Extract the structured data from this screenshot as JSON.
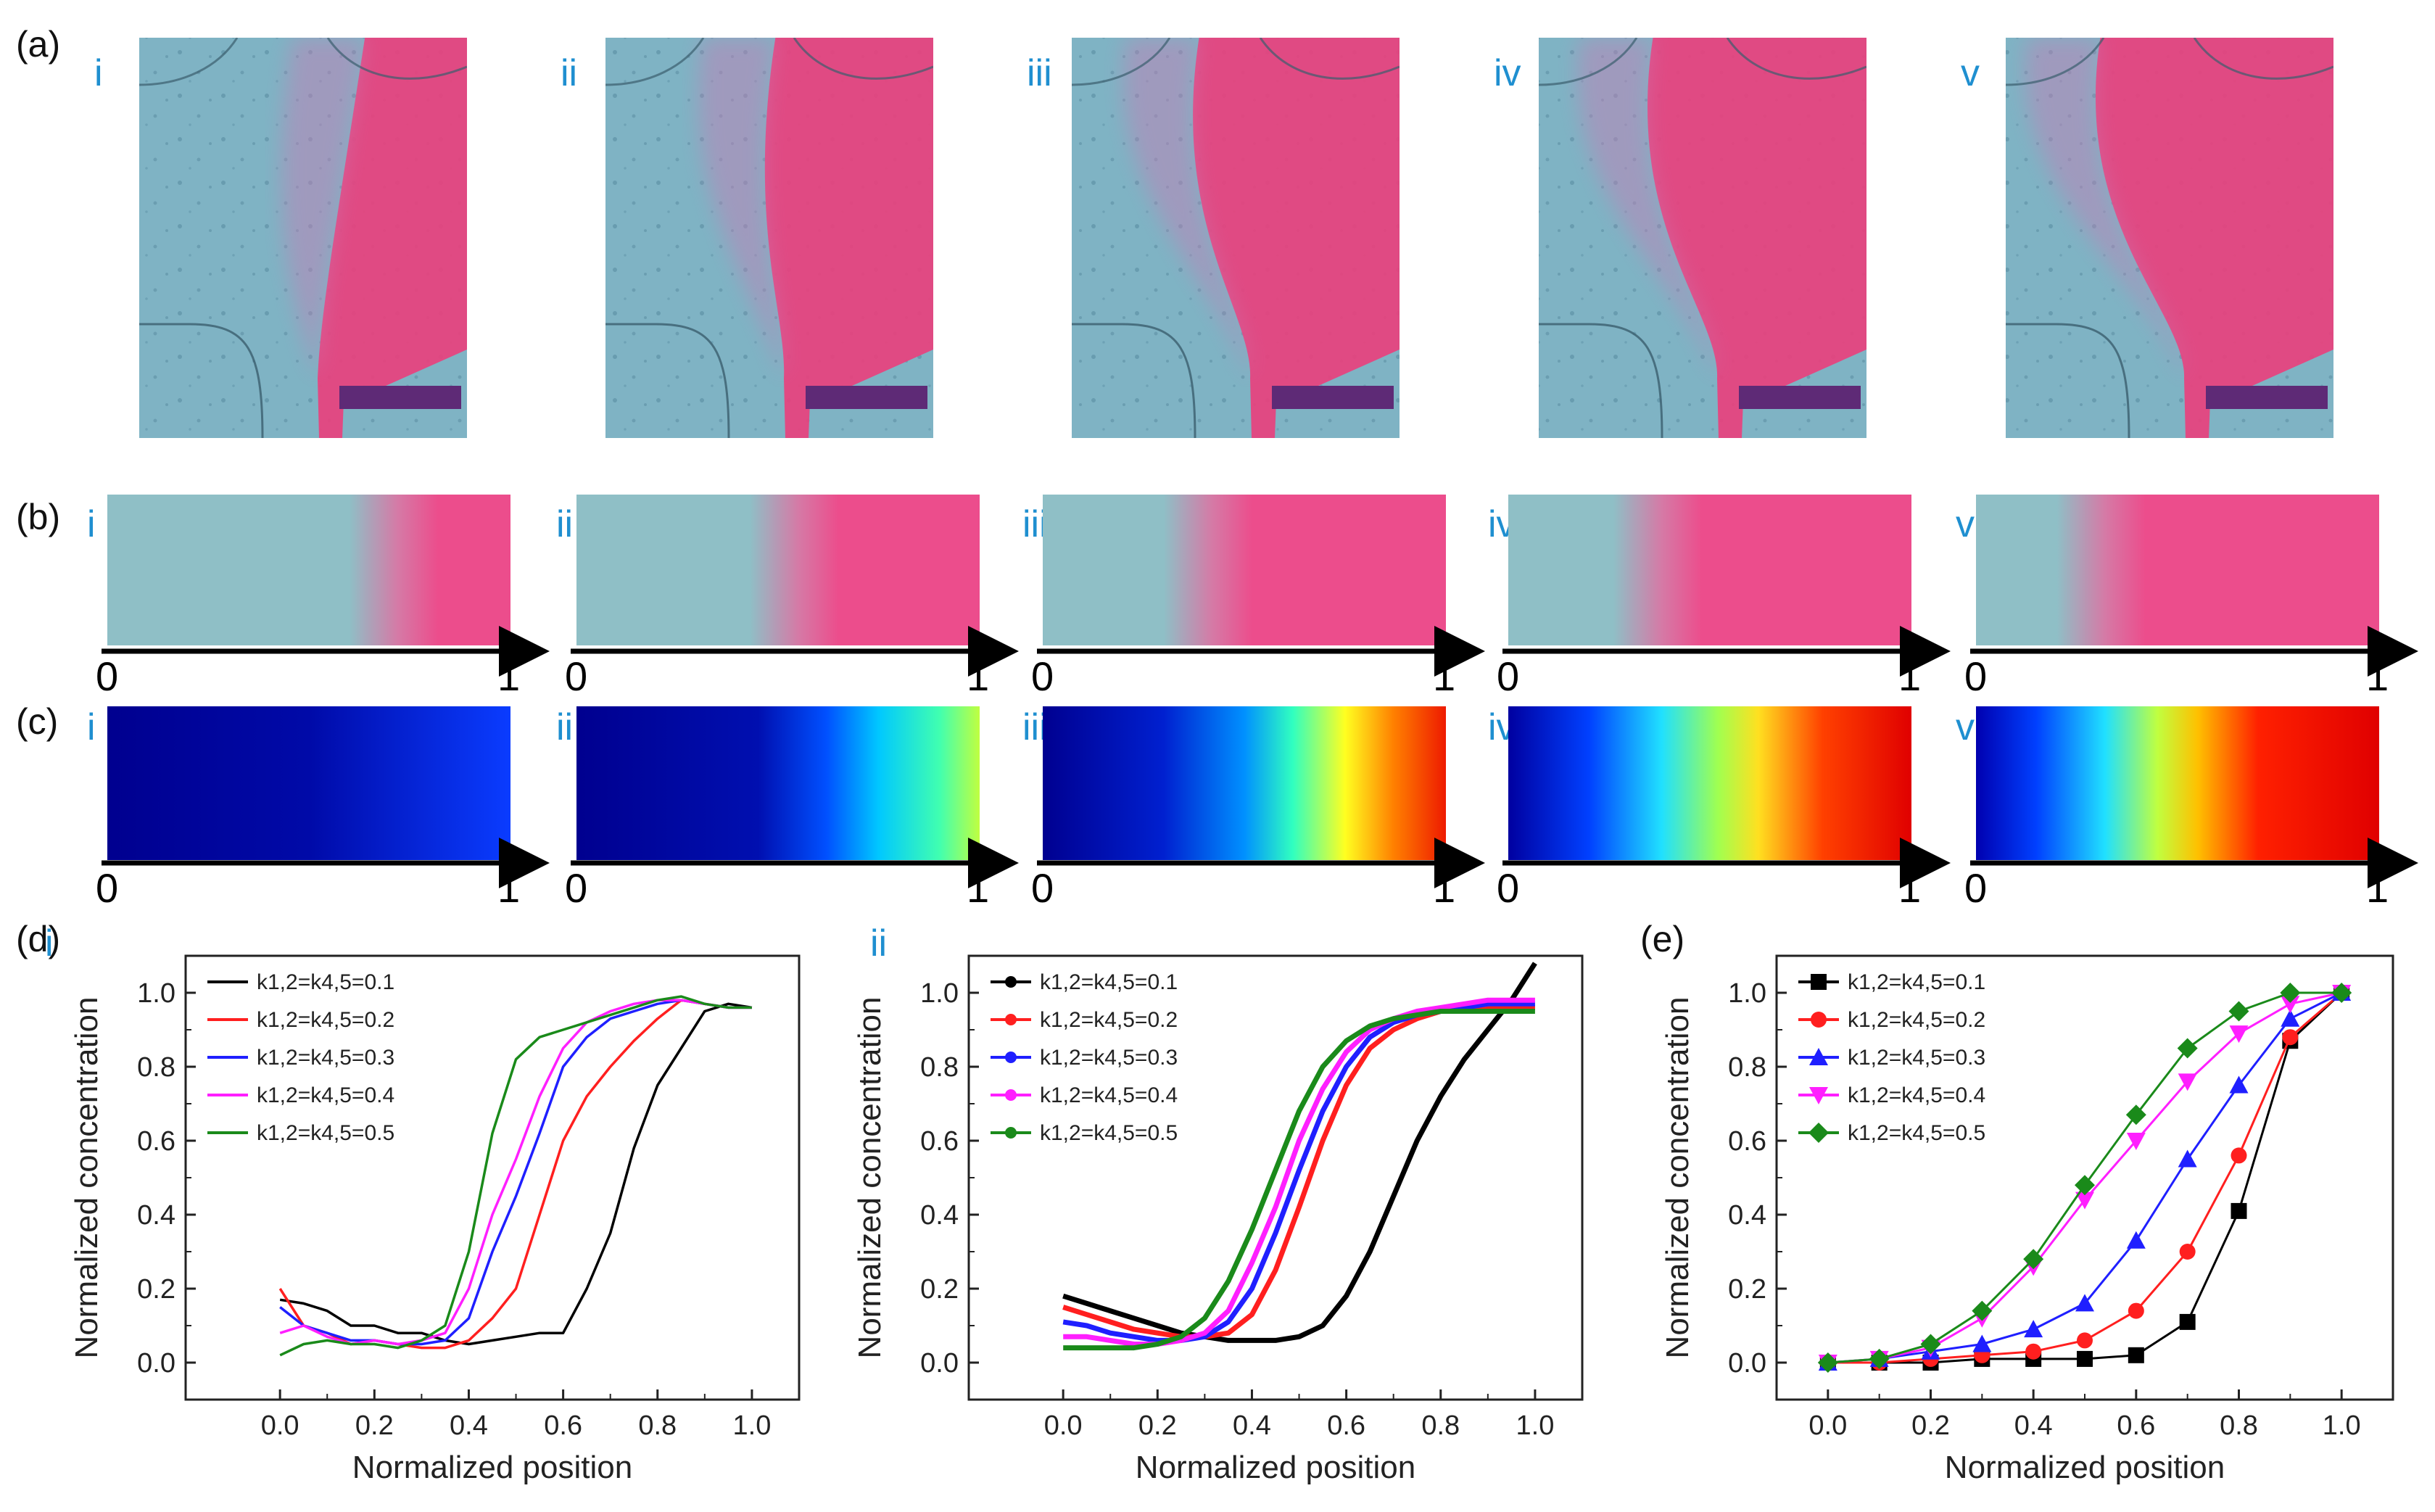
{
  "figure": {
    "panel_labels": {
      "a": "(a)",
      "b": "(b)",
      "c": "(c)",
      "d": "(d)",
      "e": "(e)"
    },
    "sub_labels": [
      "i",
      "ii",
      "iii",
      "iv",
      "v"
    ],
    "axis_start": "0",
    "axis_end": "1",
    "front_positions": [
      0.72,
      0.55,
      0.42,
      0.38,
      0.32
    ],
    "colormap_peaks": [
      0.3,
      0.55,
      0.8,
      0.95,
      1.0
    ]
  },
  "chart_data": [
    {
      "id": "d-i",
      "panel_label": "i",
      "type": "line",
      "title": "",
      "xlabel": "Normalized position",
      "ylabel": "Normalized concentration",
      "xlim": [
        -0.2,
        1.1
      ],
      "ylim": [
        -0.1,
        1.1
      ],
      "xticks": [
        "0.0",
        "0.2",
        "0.4",
        "0.6",
        "0.8",
        "1.0"
      ],
      "yticks": [
        "0.0",
        "0.2",
        "0.4",
        "0.6",
        "0.8",
        "1.0"
      ],
      "legend_position": "top-left",
      "series": [
        {
          "name": "k1,2=k4,5=0.1",
          "color": "#000000",
          "x": [
            0,
            0.05,
            0.1,
            0.15,
            0.2,
            0.25,
            0.3,
            0.35,
            0.4,
            0.45,
            0.5,
            0.55,
            0.6,
            0.65,
            0.7,
            0.75,
            0.8,
            0.85,
            0.9,
            0.95,
            1.0
          ],
          "values": [
            0.17,
            0.16,
            0.14,
            0.1,
            0.1,
            0.08,
            0.08,
            0.06,
            0.05,
            0.06,
            0.07,
            0.08,
            0.08,
            0.2,
            0.35,
            0.58,
            0.75,
            0.85,
            0.95,
            0.97,
            0.96
          ]
        },
        {
          "name": "k1,2=k4,5=0.2",
          "color": "#ff1f1f",
          "x": [
            0,
            0.05,
            0.1,
            0.15,
            0.2,
            0.25,
            0.3,
            0.35,
            0.4,
            0.45,
            0.5,
            0.55,
            0.6,
            0.65,
            0.7,
            0.75,
            0.8,
            0.85,
            0.9,
            0.95,
            1.0
          ],
          "values": [
            0.2,
            0.1,
            0.08,
            0.05,
            0.06,
            0.05,
            0.04,
            0.04,
            0.06,
            0.12,
            0.2,
            0.4,
            0.6,
            0.72,
            0.8,
            0.87,
            0.93,
            0.98,
            0.97,
            0.96,
            0.96
          ]
        },
        {
          "name": "k1,2=k4,5=0.3",
          "color": "#1f1fff",
          "x": [
            0,
            0.05,
            0.1,
            0.15,
            0.2,
            0.25,
            0.3,
            0.35,
            0.4,
            0.45,
            0.5,
            0.55,
            0.6,
            0.65,
            0.7,
            0.75,
            0.8,
            0.85,
            0.9,
            0.95,
            1.0
          ],
          "values": [
            0.15,
            0.1,
            0.08,
            0.06,
            0.06,
            0.05,
            0.05,
            0.06,
            0.12,
            0.3,
            0.45,
            0.62,
            0.8,
            0.88,
            0.93,
            0.95,
            0.97,
            0.98,
            0.97,
            0.96,
            0.96
          ]
        },
        {
          "name": "k1,2=k4,5=0.4",
          "color": "#ff1fff",
          "x": [
            0,
            0.05,
            0.1,
            0.15,
            0.2,
            0.25,
            0.3,
            0.35,
            0.4,
            0.45,
            0.5,
            0.55,
            0.6,
            0.65,
            0.7,
            0.75,
            0.8,
            0.85,
            0.9,
            0.95,
            1.0
          ],
          "values": [
            0.08,
            0.1,
            0.07,
            0.05,
            0.06,
            0.05,
            0.06,
            0.08,
            0.2,
            0.4,
            0.55,
            0.72,
            0.85,
            0.92,
            0.95,
            0.97,
            0.98,
            0.98,
            0.97,
            0.96,
            0.96
          ]
        },
        {
          "name": "k1,2=k4,5=0.5",
          "color": "#1a8a1a",
          "x": [
            0,
            0.05,
            0.1,
            0.15,
            0.2,
            0.25,
            0.3,
            0.35,
            0.4,
            0.45,
            0.5,
            0.55,
            0.6,
            0.65,
            0.7,
            0.75,
            0.8,
            0.85,
            0.9,
            0.95,
            1.0
          ],
          "values": [
            0.02,
            0.05,
            0.06,
            0.05,
            0.05,
            0.04,
            0.06,
            0.1,
            0.3,
            0.62,
            0.82,
            0.88,
            0.9,
            0.92,
            0.94,
            0.96,
            0.98,
            0.99,
            0.97,
            0.96,
            0.96
          ]
        }
      ]
    },
    {
      "id": "d-ii",
      "panel_label": "ii",
      "type": "line",
      "title": "",
      "xlabel": "Normalized position",
      "ylabel": "Normalized concentration",
      "xlim": [
        -0.2,
        1.1
      ],
      "ylim": [
        -0.1,
        1.1
      ],
      "xticks": [
        "0.0",
        "0.2",
        "0.4",
        "0.6",
        "0.8",
        "1.0"
      ],
      "yticks": [
        "0.0",
        "0.2",
        "0.4",
        "0.6",
        "0.8",
        "1.0"
      ],
      "legend_position": "top-left",
      "series": [
        {
          "name": "k1,2=k4,5=0.1",
          "color": "#000000",
          "x": [
            0,
            0.05,
            0.1,
            0.15,
            0.2,
            0.25,
            0.3,
            0.35,
            0.4,
            0.45,
            0.5,
            0.55,
            0.6,
            0.65,
            0.7,
            0.75,
            0.8,
            0.85,
            0.9,
            0.95,
            1.0
          ],
          "values": [
            0.18,
            0.16,
            0.14,
            0.12,
            0.1,
            0.08,
            0.07,
            0.06,
            0.06,
            0.06,
            0.07,
            0.1,
            0.18,
            0.3,
            0.45,
            0.6,
            0.72,
            0.82,
            0.9,
            0.98,
            1.08
          ]
        },
        {
          "name": "k1,2=k4,5=0.2",
          "color": "#ff1f1f",
          "x": [
            0,
            0.05,
            0.1,
            0.15,
            0.2,
            0.25,
            0.3,
            0.35,
            0.4,
            0.45,
            0.5,
            0.55,
            0.6,
            0.65,
            0.7,
            0.75,
            0.8,
            0.85,
            0.9,
            0.95,
            1.0
          ],
          "values": [
            0.15,
            0.13,
            0.11,
            0.09,
            0.08,
            0.07,
            0.07,
            0.08,
            0.13,
            0.25,
            0.42,
            0.6,
            0.75,
            0.85,
            0.9,
            0.93,
            0.95,
            0.96,
            0.96,
            0.96,
            0.96
          ]
        },
        {
          "name": "k1,2=k4,5=0.3",
          "color": "#1f1fff",
          "x": [
            0,
            0.05,
            0.1,
            0.15,
            0.2,
            0.25,
            0.3,
            0.35,
            0.4,
            0.45,
            0.5,
            0.55,
            0.6,
            0.65,
            0.7,
            0.75,
            0.8,
            0.85,
            0.9,
            0.95,
            1.0
          ],
          "values": [
            0.11,
            0.1,
            0.08,
            0.07,
            0.06,
            0.06,
            0.07,
            0.11,
            0.2,
            0.35,
            0.52,
            0.68,
            0.8,
            0.88,
            0.92,
            0.94,
            0.95,
            0.96,
            0.97,
            0.97,
            0.97
          ]
        },
        {
          "name": "k1,2=k4,5=0.4",
          "color": "#ff1fff",
          "x": [
            0,
            0.05,
            0.1,
            0.15,
            0.2,
            0.25,
            0.3,
            0.35,
            0.4,
            0.45,
            0.5,
            0.55,
            0.6,
            0.65,
            0.7,
            0.75,
            0.8,
            0.85,
            0.9,
            0.95,
            1.0
          ],
          "values": [
            0.07,
            0.07,
            0.06,
            0.05,
            0.05,
            0.06,
            0.08,
            0.14,
            0.27,
            0.42,
            0.6,
            0.74,
            0.84,
            0.9,
            0.93,
            0.95,
            0.96,
            0.97,
            0.98,
            0.98,
            0.98
          ]
        },
        {
          "name": "k1,2=k4,5=0.5",
          "color": "#1a8a1a",
          "x": [
            0,
            0.05,
            0.1,
            0.15,
            0.2,
            0.25,
            0.3,
            0.35,
            0.4,
            0.45,
            0.5,
            0.55,
            0.6,
            0.65,
            0.7,
            0.75,
            0.8,
            0.85,
            0.9,
            0.95,
            1.0
          ],
          "values": [
            0.04,
            0.04,
            0.04,
            0.04,
            0.05,
            0.07,
            0.12,
            0.22,
            0.36,
            0.52,
            0.68,
            0.8,
            0.87,
            0.91,
            0.93,
            0.94,
            0.95,
            0.95,
            0.95,
            0.95,
            0.95
          ]
        }
      ]
    },
    {
      "id": "e",
      "panel_label": "",
      "type": "line",
      "title": "",
      "xlabel": "Normalized position",
      "ylabel": "Normalized concentration",
      "xlim": [
        -0.1,
        1.1
      ],
      "ylim": [
        -0.1,
        1.1
      ],
      "xticks": [
        "0.0",
        "0.2",
        "0.4",
        "0.6",
        "0.8",
        "1.0"
      ],
      "yticks": [
        "0.0",
        "0.2",
        "0.4",
        "0.6",
        "0.8",
        "1.0"
      ],
      "legend_position": "top-left",
      "series": [
        {
          "name": "k1,2=k4,5=0.1",
          "color": "#000000",
          "marker": "square",
          "x": [
            0,
            0.1,
            0.2,
            0.3,
            0.4,
            0.5,
            0.6,
            0.7,
            0.8,
            0.9,
            1.0
          ],
          "values": [
            0.0,
            0.0,
            0.0,
            0.01,
            0.01,
            0.01,
            0.02,
            0.11,
            0.41,
            0.87,
            1.0
          ]
        },
        {
          "name": "k1,2=k4,5=0.2",
          "color": "#ff1f1f",
          "marker": "circle",
          "x": [
            0,
            0.1,
            0.2,
            0.3,
            0.4,
            0.5,
            0.6,
            0.7,
            0.8,
            0.9,
            1.0
          ],
          "values": [
            0.0,
            0.0,
            0.01,
            0.02,
            0.03,
            0.06,
            0.14,
            0.3,
            0.56,
            0.88,
            1.0
          ]
        },
        {
          "name": "k1,2=k4,5=0.3",
          "color": "#1f1fff",
          "marker": "triangle-up",
          "x": [
            0,
            0.1,
            0.2,
            0.3,
            0.4,
            0.5,
            0.6,
            0.7,
            0.8,
            0.9,
            1.0
          ],
          "values": [
            0.0,
            0.01,
            0.03,
            0.05,
            0.09,
            0.16,
            0.33,
            0.55,
            0.75,
            0.93,
            1.0
          ]
        },
        {
          "name": "k1,2=k4,5=0.4",
          "color": "#ff1fff",
          "marker": "triangle-down",
          "x": [
            0,
            0.1,
            0.2,
            0.3,
            0.4,
            0.5,
            0.6,
            0.7,
            0.8,
            0.9,
            1.0
          ],
          "values": [
            0.0,
            0.01,
            0.04,
            0.12,
            0.26,
            0.44,
            0.6,
            0.76,
            0.89,
            0.97,
            1.0
          ]
        },
        {
          "name": "k1,2=k4,5=0.5",
          "color": "#1a8a1a",
          "marker": "diamond",
          "x": [
            0,
            0.1,
            0.2,
            0.3,
            0.4,
            0.5,
            0.6,
            0.7,
            0.8,
            0.9,
            1.0
          ],
          "values": [
            0.0,
            0.01,
            0.05,
            0.14,
            0.28,
            0.48,
            0.67,
            0.85,
            0.95,
            1.0,
            1.0
          ]
        }
      ]
    }
  ]
}
